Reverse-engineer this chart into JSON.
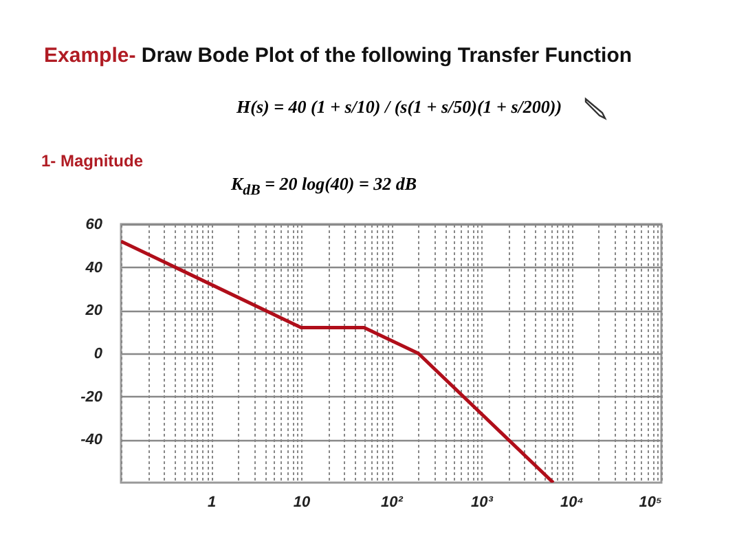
{
  "chart_data": {
    "type": "line",
    "title": "Example- Draw Bode Plot of the following Transfer Function",
    "annotations": [
      "H(s) = 40 (1 + s/10) / (s(1 + s/50)(1 + s/200))",
      "1- Magnitude",
      "K$_{dB}$ = 20 log(40) = 32 dB"
    ],
    "series": [
      {
        "color": "#b00e1a",
        "x": [
          0.1,
          10,
          50,
          200,
          6300
        ],
        "values": [
          52,
          12,
          12,
          0,
          -60
        ]
      }
    ],
    "xlim": [
      0.1,
      100000
    ],
    "ylim": [
      -60,
      60
    ],
    "log": "x",
    "grid": true,
    "yticks": [
      -40,
      -20,
      0,
      20,
      40,
      60
    ],
    "xticks": [
      {
        "value": 0.1,
        "label": null
      },
      {
        "value": 0.2,
        "label": null
      },
      {
        "value": 0.3,
        "label": null
      },
      {
        "value": 0.4,
        "label": null
      },
      {
        "value": 0.5,
        "label": null
      },
      {
        "value": 0.6,
        "label": null
      },
      {
        "value": 0.7,
        "label": null
      },
      {
        "value": 0.8,
        "label": null
      },
      {
        "value": 0.9,
        "label": null
      },
      1,
      {
        "value": 2,
        "label": null
      },
      {
        "value": 3,
        "label": null
      },
      {
        "value": 4,
        "label": null
      },
      {
        "value": 5,
        "label": null
      },
      {
        "value": 6,
        "label": null
      },
      {
        "value": 7,
        "label": null
      },
      {
        "value": 8,
        "label": null
      },
      {
        "value": 9,
        "label": null
      },
      10,
      {
        "value": 20,
        "label": null
      },
      {
        "value": 30,
        "label": null
      },
      {
        "value": 40,
        "label": null
      },
      {
        "value": 50,
        "label": null
      },
      {
        "value": 60,
        "label": null
      },
      {
        "value": 70,
        "label": null
      },
      {
        "value": 80,
        "label": null
      },
      {
        "value": 90,
        "label": null
      },
      {
        "value": 100,
        "label": "10²"
      },
      {
        "value": 200,
        "label": null
      },
      {
        "value": 300,
        "label": null
      },
      {
        "value": 400,
        "label": null
      },
      {
        "value": 500,
        "label": null
      },
      {
        "value": 600,
        "label": null
      },
      {
        "value": 700,
        "label": null
      },
      {
        "value": 800,
        "label": null
      },
      {
        "value": 900,
        "label": null
      },
      {
        "value": 1000,
        "label": "10³"
      },
      {
        "value": 2000,
        "label": null
      },
      {
        "value": 3000,
        "label": null
      },
      {
        "value": 4000,
        "label": null
      },
      {
        "value": 5000,
        "label": null
      },
      {
        "value": 6000,
        "label": null
      },
      {
        "value": 7000,
        "label": null
      },
      {
        "value": 8000,
        "label": null
      },
      {
        "value": 9000,
        "label": null
      },
      {
        "value": 10000,
        "label": "10⁴"
      },
      {
        "value": 20000,
        "label": null
      },
      {
        "value": 30000,
        "label": null
      },
      {
        "value": 40000,
        "label": null
      },
      {
        "value": 50000,
        "label": null
      },
      {
        "value": 60000,
        "label": null
      },
      {
        "value": 70000,
        "label": null
      },
      {
        "value": 80000,
        "label": null
      },
      {
        "value": 90000,
        "label": null
      },
      {
        "value": 100000,
        "label": "10⁵"
      }
    ]
  }
}
